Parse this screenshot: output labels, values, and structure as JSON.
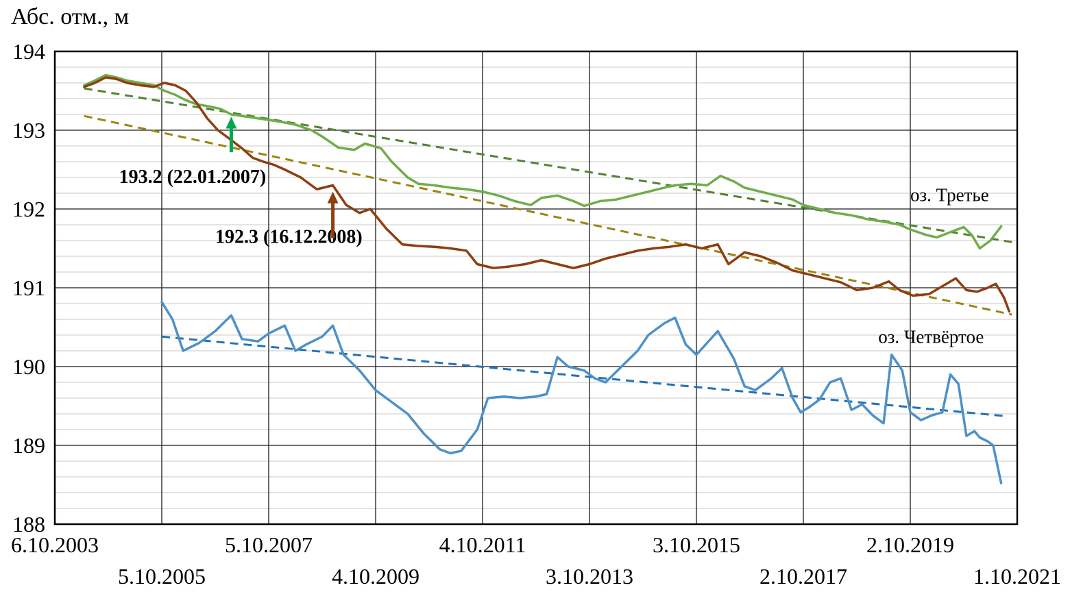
{
  "page": {
    "background": "#ffffff"
  },
  "chart_data": {
    "type": "line",
    "title": "Абс. отм., м",
    "ylabel": "Абс. отм., м",
    "xlabel": "",
    "ylim": [
      188,
      194
    ],
    "y_major_step": 1,
    "y_minor_step": 0.2,
    "x_span": 18,
    "x_tick_step": 2,
    "grid": "on",
    "legend_position": "inline-labels",
    "x_ticks_row1": [
      "6.10.2003",
      "5.10.2007",
      "4.10.2011",
      "3.10.2015",
      "2.10.2019"
    ],
    "x_ticks_row2": [
      "5.10.2005",
      "4.10.2009",
      "3.10.2013",
      "2.10.2017",
      "1.10.2021"
    ],
    "series": [
      {
        "name": "оз. Третье",
        "color": "#6fad4b",
        "points": [
          [
            0.55,
            193.57
          ],
          [
            0.75,
            193.63
          ],
          [
            0.95,
            193.7
          ],
          [
            1.15,
            193.67
          ],
          [
            1.35,
            193.63
          ],
          [
            1.6,
            193.6
          ],
          [
            1.85,
            193.57
          ],
          [
            2.05,
            193.5
          ],
          [
            2.25,
            193.45
          ],
          [
            2.45,
            193.38
          ],
          [
            2.65,
            193.33
          ],
          [
            2.9,
            193.3
          ],
          [
            3.1,
            193.27
          ],
          [
            3.3,
            193.2
          ],
          [
            3.6,
            193.17
          ],
          [
            3.9,
            193.14
          ],
          [
            4.2,
            193.11
          ],
          [
            4.5,
            193.07
          ],
          [
            4.8,
            193.0
          ],
          [
            5.0,
            192.92
          ],
          [
            5.3,
            192.78
          ],
          [
            5.6,
            192.75
          ],
          [
            5.8,
            192.83
          ],
          [
            6.1,
            192.77
          ],
          [
            6.3,
            192.6
          ],
          [
            6.6,
            192.4
          ],
          [
            6.8,
            192.32
          ],
          [
            7.1,
            192.3
          ],
          [
            7.4,
            192.27
          ],
          [
            7.7,
            192.25
          ],
          [
            8.0,
            192.22
          ],
          [
            8.3,
            192.17
          ],
          [
            8.6,
            192.1
          ],
          [
            8.9,
            192.05
          ],
          [
            9.1,
            192.14
          ],
          [
            9.4,
            192.17
          ],
          [
            9.7,
            192.1
          ],
          [
            9.9,
            192.04
          ],
          [
            10.2,
            192.1
          ],
          [
            10.5,
            192.12
          ],
          [
            10.8,
            192.17
          ],
          [
            11.1,
            192.22
          ],
          [
            11.4,
            192.27
          ],
          [
            11.6,
            192.3
          ],
          [
            11.9,
            192.32
          ],
          [
            12.2,
            192.3
          ],
          [
            12.45,
            192.42
          ],
          [
            12.7,
            192.35
          ],
          [
            12.9,
            192.27
          ],
          [
            13.2,
            192.22
          ],
          [
            13.5,
            192.17
          ],
          [
            13.8,
            192.12
          ],
          [
            14.0,
            192.05
          ],
          [
            14.3,
            192.0
          ],
          [
            14.6,
            191.95
          ],
          [
            14.9,
            191.92
          ],
          [
            15.2,
            191.87
          ],
          [
            15.5,
            191.84
          ],
          [
            15.8,
            191.8
          ],
          [
            16.0,
            191.74
          ],
          [
            16.3,
            191.67
          ],
          [
            16.5,
            191.64
          ],
          [
            16.8,
            191.72
          ],
          [
            17.0,
            191.77
          ],
          [
            17.15,
            191.67
          ],
          [
            17.3,
            191.5
          ],
          [
            17.5,
            191.6
          ],
          [
            17.7,
            191.78
          ]
        ]
      },
      {
        "name": "",
        "color": "#8f3e10",
        "points": [
          [
            0.55,
            193.55
          ],
          [
            0.75,
            193.6
          ],
          [
            0.95,
            193.67
          ],
          [
            1.15,
            193.65
          ],
          [
            1.35,
            193.6
          ],
          [
            1.6,
            193.57
          ],
          [
            1.85,
            193.55
          ],
          [
            2.05,
            193.6
          ],
          [
            2.25,
            193.57
          ],
          [
            2.45,
            193.5
          ],
          [
            2.65,
            193.35
          ],
          [
            2.85,
            193.15
          ],
          [
            3.05,
            193.0
          ],
          [
            3.25,
            192.9
          ],
          [
            3.5,
            192.77
          ],
          [
            3.7,
            192.65
          ],
          [
            3.9,
            192.6
          ],
          [
            4.1,
            192.56
          ],
          [
            4.3,
            192.5
          ],
          [
            4.6,
            192.4
          ],
          [
            4.9,
            192.25
          ],
          [
            5.2,
            192.3
          ],
          [
            5.45,
            192.05
          ],
          [
            5.7,
            191.95
          ],
          [
            5.9,
            192.0
          ],
          [
            6.2,
            191.75
          ],
          [
            6.5,
            191.55
          ],
          [
            6.8,
            191.53
          ],
          [
            7.1,
            191.52
          ],
          [
            7.4,
            191.5
          ],
          [
            7.7,
            191.47
          ],
          [
            7.9,
            191.3
          ],
          [
            8.2,
            191.25
          ],
          [
            8.5,
            191.27
          ],
          [
            8.8,
            191.3
          ],
          [
            9.1,
            191.35
          ],
          [
            9.4,
            191.3
          ],
          [
            9.7,
            191.25
          ],
          [
            10.0,
            191.3
          ],
          [
            10.3,
            191.37
          ],
          [
            10.6,
            191.42
          ],
          [
            10.9,
            191.47
          ],
          [
            11.2,
            191.5
          ],
          [
            11.5,
            191.52
          ],
          [
            11.8,
            191.55
          ],
          [
            12.1,
            191.5
          ],
          [
            12.4,
            191.55
          ],
          [
            12.6,
            191.3
          ],
          [
            12.9,
            191.45
          ],
          [
            13.2,
            191.4
          ],
          [
            13.5,
            191.32
          ],
          [
            13.8,
            191.22
          ],
          [
            14.1,
            191.17
          ],
          [
            14.4,
            191.12
          ],
          [
            14.7,
            191.07
          ],
          [
            15.0,
            190.97
          ],
          [
            15.3,
            191.0
          ],
          [
            15.6,
            191.08
          ],
          [
            15.8,
            190.97
          ],
          [
            16.05,
            190.9
          ],
          [
            16.35,
            190.92
          ],
          [
            16.6,
            191.02
          ],
          [
            16.85,
            191.12
          ],
          [
            17.05,
            190.97
          ],
          [
            17.25,
            190.95
          ],
          [
            17.45,
            191.0
          ],
          [
            17.6,
            191.05
          ],
          [
            17.75,
            190.88
          ],
          [
            17.85,
            190.7
          ]
        ]
      },
      {
        "name": "оз. Четвёртое",
        "color": "#4e91c7",
        "points": [
          [
            2.0,
            190.82
          ],
          [
            2.2,
            190.6
          ],
          [
            2.4,
            190.2
          ],
          [
            2.7,
            190.3
          ],
          [
            3.0,
            190.45
          ],
          [
            3.3,
            190.65
          ],
          [
            3.5,
            190.35
          ],
          [
            3.8,
            190.32
          ],
          [
            4.0,
            190.42
          ],
          [
            4.3,
            190.52
          ],
          [
            4.5,
            190.2
          ],
          [
            4.7,
            190.28
          ],
          [
            5.0,
            190.38
          ],
          [
            5.2,
            190.52
          ],
          [
            5.4,
            190.15
          ],
          [
            5.7,
            189.95
          ],
          [
            6.0,
            189.7
          ],
          [
            6.3,
            189.55
          ],
          [
            6.6,
            189.4
          ],
          [
            6.9,
            189.15
          ],
          [
            7.2,
            188.95
          ],
          [
            7.4,
            188.9
          ],
          [
            7.6,
            188.93
          ],
          [
            7.9,
            189.2
          ],
          [
            8.1,
            189.6
          ],
          [
            8.4,
            189.62
          ],
          [
            8.7,
            189.6
          ],
          [
            9.0,
            189.62
          ],
          [
            9.2,
            189.65
          ],
          [
            9.4,
            190.12
          ],
          [
            9.6,
            190.0
          ],
          [
            9.9,
            189.95
          ],
          [
            10.1,
            189.85
          ],
          [
            10.3,
            189.8
          ],
          [
            10.6,
            190.0
          ],
          [
            10.9,
            190.2
          ],
          [
            11.1,
            190.4
          ],
          [
            11.4,
            190.55
          ],
          [
            11.6,
            190.62
          ],
          [
            11.8,
            190.28
          ],
          [
            12.0,
            190.15
          ],
          [
            12.2,
            190.3
          ],
          [
            12.4,
            190.45
          ],
          [
            12.7,
            190.1
          ],
          [
            12.9,
            189.75
          ],
          [
            13.1,
            189.7
          ],
          [
            13.4,
            189.85
          ],
          [
            13.6,
            189.98
          ],
          [
            13.8,
            189.6
          ],
          [
            13.95,
            189.42
          ],
          [
            14.1,
            189.48
          ],
          [
            14.3,
            189.58
          ],
          [
            14.5,
            189.8
          ],
          [
            14.7,
            189.85
          ],
          [
            14.9,
            189.45
          ],
          [
            15.1,
            189.52
          ],
          [
            15.3,
            189.38
          ],
          [
            15.5,
            189.28
          ],
          [
            15.65,
            190.15
          ],
          [
            15.85,
            189.95
          ],
          [
            16.0,
            189.42
          ],
          [
            16.2,
            189.32
          ],
          [
            16.4,
            189.38
          ],
          [
            16.6,
            189.42
          ],
          [
            16.75,
            189.9
          ],
          [
            16.9,
            189.78
          ],
          [
            17.05,
            189.12
          ],
          [
            17.2,
            189.18
          ],
          [
            17.3,
            189.1
          ],
          [
            17.45,
            189.05
          ],
          [
            17.55,
            189.0
          ],
          [
            17.7,
            188.52
          ]
        ]
      }
    ],
    "trends": [
      {
        "color": "#548235",
        "points": [
          [
            0.55,
            193.53
          ],
          [
            17.9,
            191.58
          ]
        ]
      },
      {
        "color": "#9c8412",
        "points": [
          [
            0.55,
            193.18
          ],
          [
            17.9,
            190.66
          ]
        ]
      },
      {
        "color": "#2272b8",
        "points": [
          [
            2.0,
            190.38
          ],
          [
            17.8,
            189.37
          ]
        ]
      }
    ],
    "line_labels": [
      {
        "text": "оз. Третье",
        "x": 16.0,
        "y": 192.1
      },
      {
        "text": "оз. Четвёртое",
        "x": 15.4,
        "y": 190.3
      }
    ],
    "annotations": [
      {
        "text": "193.2 (22.01.2007)",
        "color": "#00a651",
        "arrow_color": "#00a651",
        "text_x": 1.2,
        "text_y": 192.33,
        "arrow_x": 3.3,
        "arrow_from": 192.72,
        "arrow_to": 193.17
      },
      {
        "text": "192.3 (16.12.2008)",
        "color": "#b35212",
        "arrow_color": "#8f3e10",
        "text_x": 3.0,
        "text_y": 191.57,
        "arrow_x": 5.2,
        "arrow_from": 191.63,
        "arrow_to": 192.22
      }
    ],
    "y_tick_labels": [
      "188",
      "189",
      "190",
      "191",
      "192",
      "193",
      "194"
    ]
  }
}
